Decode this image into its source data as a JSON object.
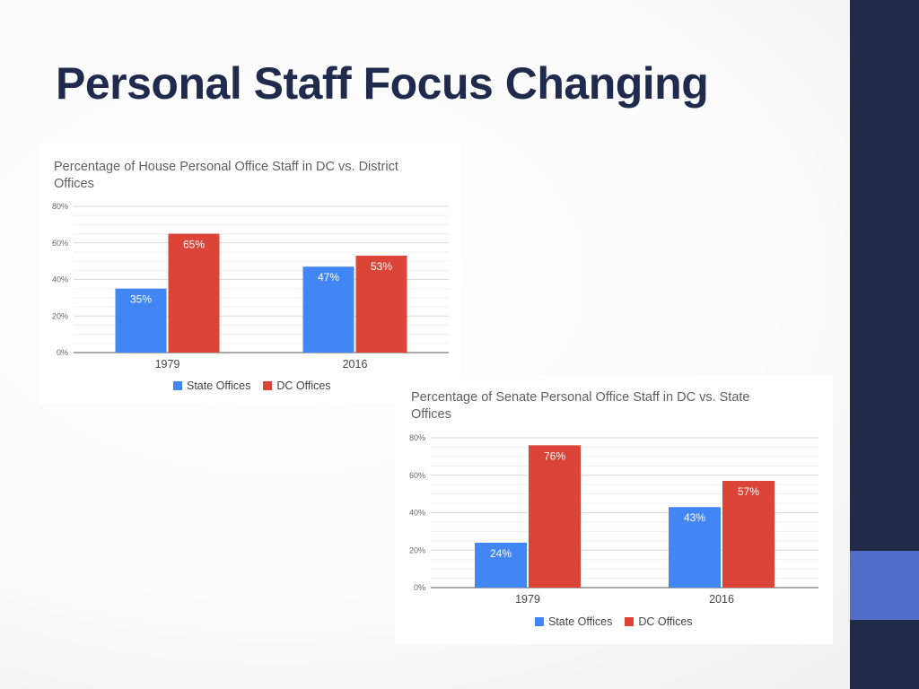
{
  "slide": {
    "title": "Personal Staff Focus Changing"
  },
  "theme": {
    "accent_dark": "#222a4a",
    "accent_blue": "#4f6cc7",
    "title_color": "#1f2a4d"
  },
  "chart_data": [
    {
      "type": "bar",
      "title": "Percentage of House Personal Office Staff in DC vs. District\nOffices",
      "categories": [
        "1979",
        "2016"
      ],
      "series": [
        {
          "name": "State Offices",
          "values": [
            35,
            47
          ],
          "color": "#4285f4"
        },
        {
          "name": "DC Offices",
          "values": [
            65,
            53
          ],
          "color": "#db4437"
        }
      ],
      "value_labels": [
        [
          "35%",
          "47%"
        ],
        [
          "65%",
          "53%"
        ]
      ],
      "y_ticks": [
        "0%",
        "20%",
        "40%",
        "60%",
        "80%"
      ],
      "ylim": [
        0,
        80
      ],
      "xlabel": "",
      "ylabel": "",
      "legend_position": "bottom"
    },
    {
      "type": "bar",
      "title": "Percentage of Senate Personal Office Staff in DC vs. State\nOffices",
      "categories": [
        "1979",
        "2016"
      ],
      "series": [
        {
          "name": "State Offices",
          "values": [
            24,
            43
          ],
          "color": "#4285f4"
        },
        {
          "name": "DC Offices",
          "values": [
            76,
            57
          ],
          "color": "#db4437"
        }
      ],
      "value_labels": [
        [
          "24%",
          "43%"
        ],
        [
          "76%",
          "57%"
        ]
      ],
      "y_ticks": [
        "0%",
        "20%",
        "40%",
        "60%",
        "80%"
      ],
      "ylim": [
        0,
        80
      ],
      "xlabel": "",
      "ylabel": "",
      "legend_position": "bottom"
    }
  ]
}
